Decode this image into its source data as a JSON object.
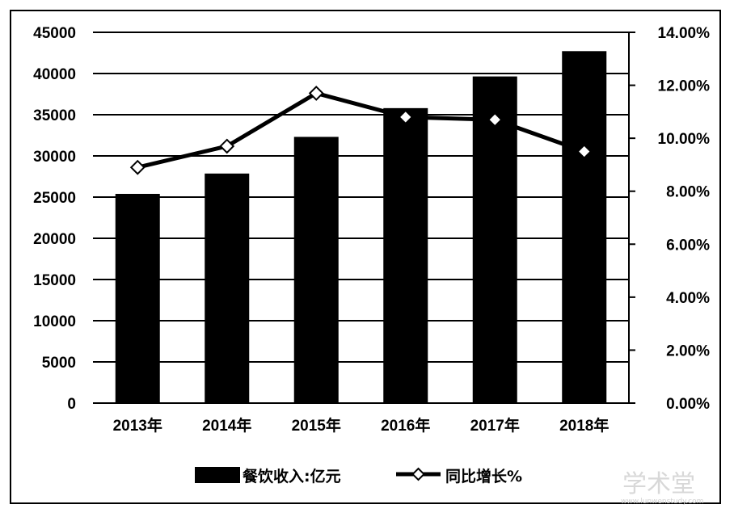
{
  "chart_data": {
    "type": "bar",
    "categories": [
      "2013年",
      "2014年",
      "2015年",
      "2016年",
      "2017年",
      "2018年"
    ],
    "series": [
      {
        "name": "餐饮收入:亿元",
        "kind": "bar",
        "axis": "left",
        "color": "#000000",
        "values": [
          25392,
          27860,
          32310,
          35799,
          39644,
          42716
        ]
      },
      {
        "name": "同比增长%",
        "kind": "line",
        "axis": "right",
        "color": "#000000",
        "marker": "open-diamond",
        "values": [
          0.089,
          0.097,
          0.117,
          0.108,
          0.107,
          0.095
        ]
      }
    ],
    "y_left": {
      "min": 0,
      "max": 45000,
      "ticks": [
        0,
        5000,
        10000,
        15000,
        20000,
        25000,
        30000,
        35000,
        40000,
        45000
      ],
      "tick_labels": [
        "0",
        "5000",
        "10000",
        "15000",
        "20000",
        "25000",
        "30000",
        "35000",
        "40000",
        "45000"
      ]
    },
    "y_right": {
      "min": 0,
      "max": 0.14,
      "ticks": [
        0,
        0.02,
        0.04,
        0.06,
        0.08,
        0.1,
        0.12,
        0.14
      ],
      "tick_labels": [
        "0.00%",
        "2.00%",
        "4.00%",
        "6.00%",
        "8.00%",
        "10.00%",
        "12.00%",
        "14.00%"
      ]
    },
    "grid": true,
    "legend_position": "bottom",
    "title": "",
    "xlabel": "",
    "ylabel": ""
  },
  "legend": {
    "bar_label": "餐饮收入:亿元",
    "line_label": "同比增长%"
  },
  "watermark": {
    "text": "学术堂",
    "sub": "www.lunwenstudy.com"
  }
}
